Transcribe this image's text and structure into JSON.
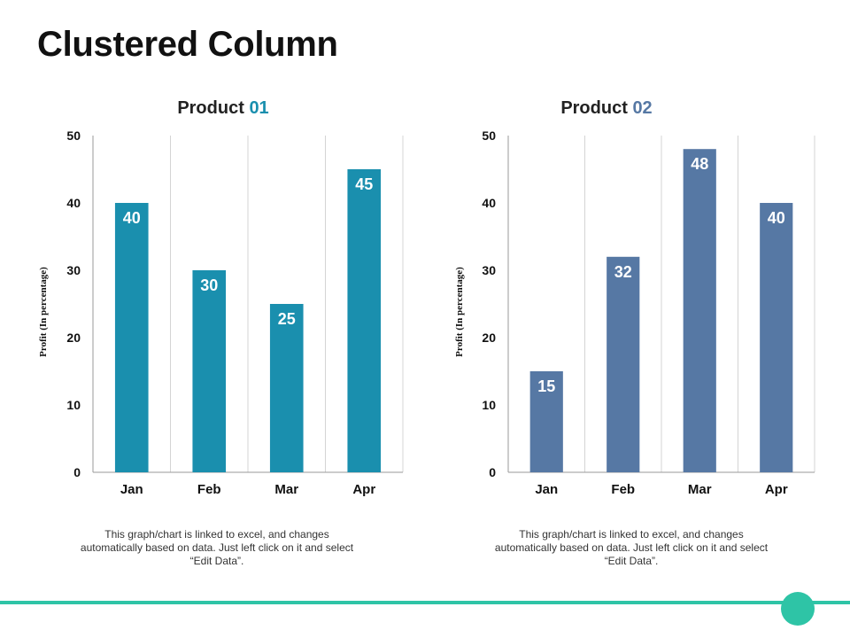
{
  "page": {
    "title": "Clustered Column",
    "accent_color": "#2ec4a6"
  },
  "chart_data": [
    {
      "type": "bar",
      "title_prefix": "Product ",
      "title_number": "01",
      "title_number_color": "#1a8fae",
      "categories": [
        "Jan",
        "Feb",
        "Mar",
        "Apr"
      ],
      "values": [
        40,
        30,
        25,
        45
      ],
      "bar_color": "#1a8fae",
      "ylabel": "Profit (In percentage)",
      "xlabel": "",
      "ylim": [
        0,
        50
      ],
      "yticks": [
        0,
        10,
        20,
        30,
        40,
        50
      ],
      "grid": "vertical",
      "data_labels": true
    },
    {
      "type": "bar",
      "title_prefix": "Product ",
      "title_number": "02",
      "title_number_color": "#5678a4",
      "categories": [
        "Jan",
        "Feb",
        "Mar",
        "Apr"
      ],
      "values": [
        15,
        32,
        48,
        40
      ],
      "bar_color": "#5678a4",
      "ylabel": "Profit (In percentage)",
      "xlabel": "",
      "ylim": [
        0,
        50
      ],
      "yticks": [
        0,
        10,
        20,
        30,
        40,
        50
      ],
      "grid": "vertical",
      "data_labels": true
    }
  ],
  "captions": [
    "This graph/chart is linked to excel, and changes automatically based on data. Just left click on it and select “Edit Data”.",
    "This graph/chart is linked to excel, and changes automatically based on data. Just left click on it and select “Edit Data”."
  ]
}
